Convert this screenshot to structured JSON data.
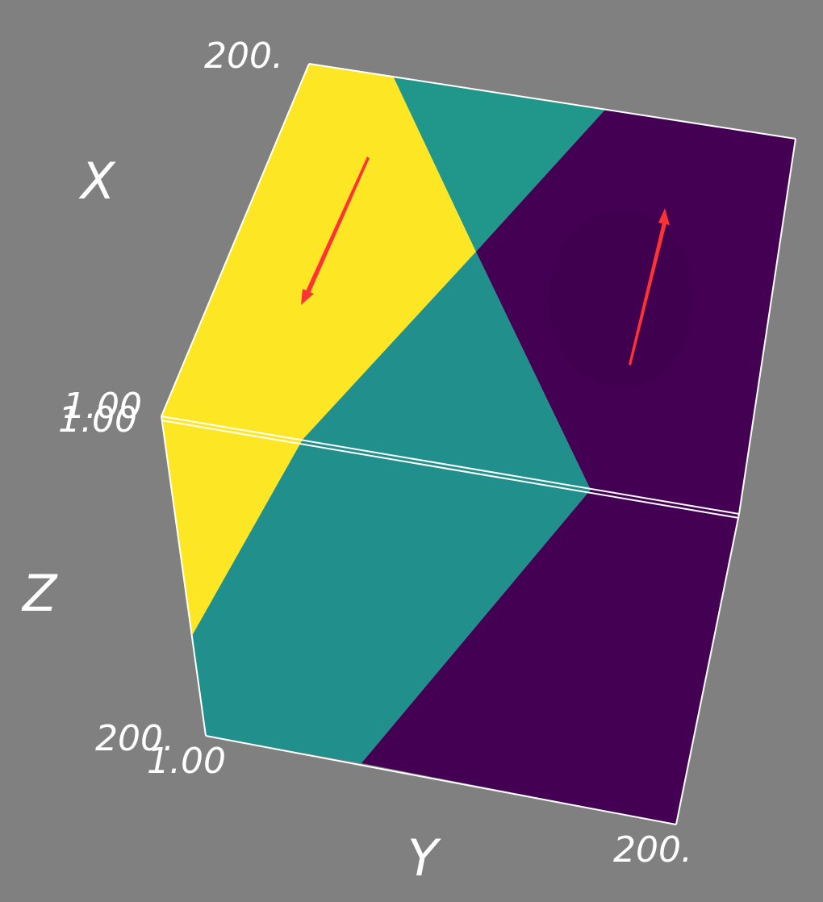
{
  "colors": {
    "background": "#808080",
    "yellow": "#fde725",
    "teal_top": "#21968a",
    "teal": "#21908d",
    "purple": "#440154",
    "purple_dark": "#41024e",
    "edge": "#ffffff",
    "arrow": "#ff3333"
  },
  "axes": {
    "x_label": "X",
    "y_label": "Y",
    "z_label": "Z"
  },
  "ticks": {
    "x_max": "200.",
    "x_min_a": "1.00",
    "z_min": "1.00",
    "z_max": "200.",
    "y_min": "1.00",
    "y_max": "200."
  },
  "arrows": [
    {
      "name": "left-field-arrow",
      "direction": "down"
    },
    {
      "name": "right-field-arrow",
      "direction": "up"
    }
  ]
}
